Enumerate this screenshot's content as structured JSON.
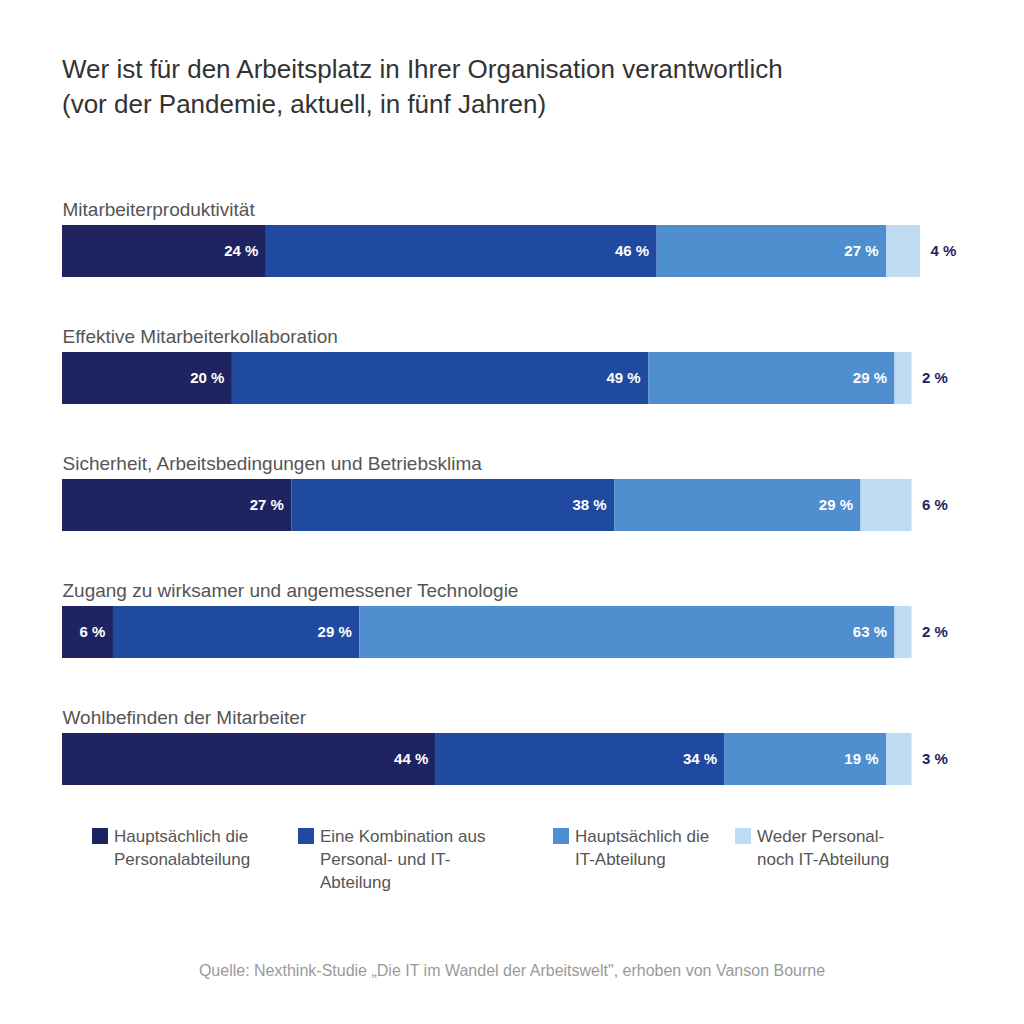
{
  "chart_data": {
    "type": "bar",
    "orientation": "horizontal",
    "stacked": true,
    "data_labels": true,
    "tick_labels": false,
    "legend": "bottom",
    "title": "Wer ist für den Arbeitsplatz in Ihrer Organisation verantwortlich",
    "subtitle": "(vor der Pandemie, aktuell, in fünf Jahren)",
    "caption": "Quelle: Nexthink-Studie „Die IT im Wandel der Arbeitswelt\", erhoben von Vanson Bourne",
    "categories": [
      "Mitarbeiterproduktivität",
      "Effektive Mitarbeiterkollaboration",
      "Sicherheit, Arbeitsbedingungen und Betriebsklima",
      "Zugang zu wirksamer und angemessener Technologie",
      "Wohlbefinden der Mitarbeiter"
    ],
    "xlim": [
      0,
      101
    ],
    "series": [
      {
        "name": "Hauptsächlich die Personalabteilung",
        "color": "#1f2460",
        "values": [
          24,
          20,
          27,
          6,
          44
        ],
        "value_labels": [
          "24 %",
          "20 %",
          "27 %",
          "6 %",
          "44 %"
        ]
      },
      {
        "name": "Eine Kombination aus Personal- und IT-Abteilung",
        "color": "#1f4aa0",
        "values": [
          46,
          49,
          38,
          29,
          34
        ],
        "value_labels": [
          "46 %",
          "49 %",
          "38 %",
          "29 %",
          "34 %"
        ]
      },
      {
        "name": "Hauptsächlich die IT-Abteilung",
        "color": "#4f8ecf",
        "values": [
          27,
          29,
          29,
          63,
          19
        ],
        "value_labels": [
          "27 %",
          "29 %",
          "29 %",
          "63 %",
          "19 %"
        ]
      },
      {
        "name": "Weder Personal- noch IT-Abteilung",
        "color": "#c0dcf2",
        "values": [
          4,
          2,
          6,
          2,
          3
        ],
        "value_labels": [
          "4 %",
          "2 %",
          "6 %",
          "2 %",
          "3 %"
        ]
      }
    ]
  }
}
